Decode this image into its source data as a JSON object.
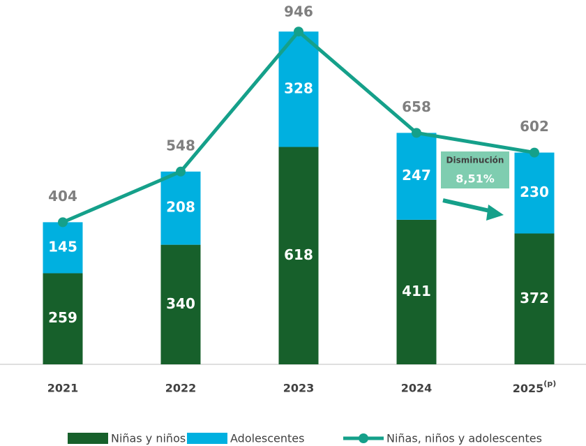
{
  "chart_data": {
    "type": "stacked-bar-line",
    "categories": [
      "2021",
      "2022",
      "2023",
      "2024",
      "2025(p)"
    ],
    "series": [
      {
        "name": "Niñas y niños",
        "color": "#17602b",
        "values": [
          259,
          340,
          618,
          411,
          372
        ]
      },
      {
        "name": "Adolescentes",
        "color": "#00b0e0",
        "values": [
          145,
          208,
          328,
          247,
          230
        ]
      },
      {
        "name": "Niñas, niños y adolescentes",
        "color": "#15a08a",
        "type": "line",
        "values": [
          404,
          548,
          946,
          658,
          602
        ]
      }
    ],
    "annotation": {
      "title": "Disminución",
      "value": "8,51%",
      "color": "#7fcdb0"
    }
  }
}
